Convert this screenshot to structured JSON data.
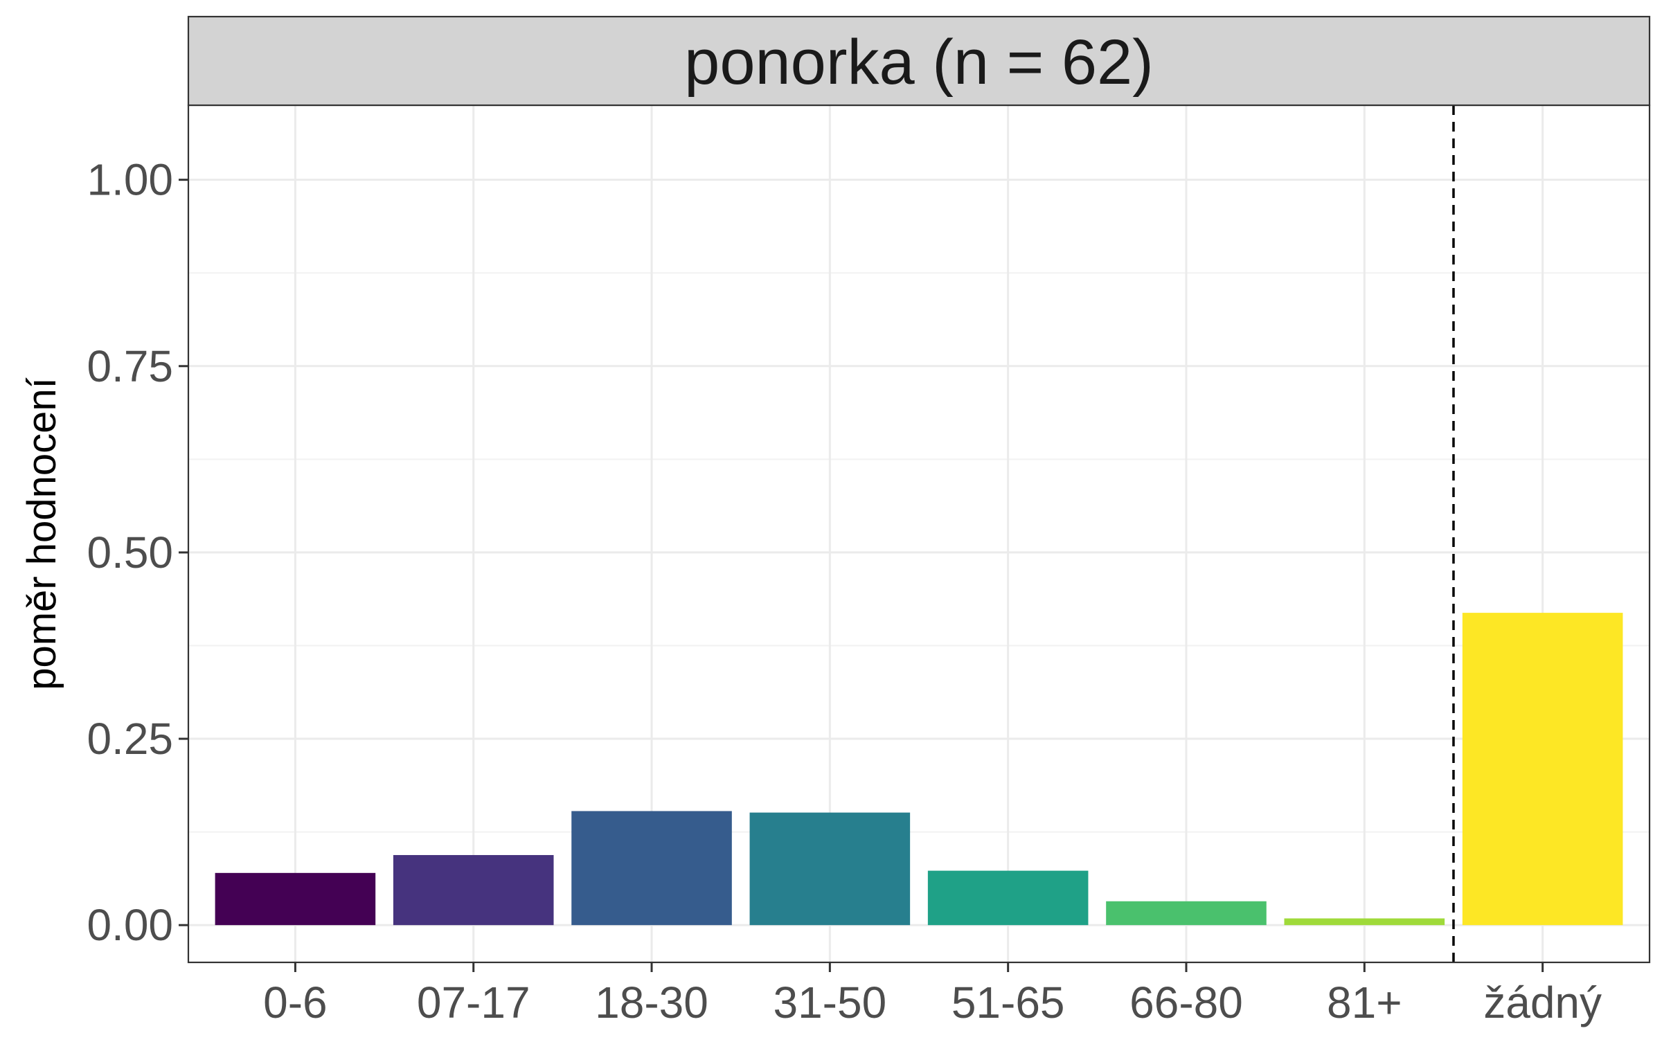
{
  "chart_data": {
    "type": "bar",
    "facet_title": "ponorka (n = 62)",
    "ylabel": "poměr hodnocení",
    "xlabel": "",
    "categories": [
      "0-6",
      "07-17",
      "18-30",
      "31-50",
      "51-65",
      "66-80",
      "81+",
      "žádný"
    ],
    "values": [
      0.07,
      0.094,
      0.153,
      0.151,
      0.073,
      0.032,
      0.009,
      0.419
    ],
    "colors": [
      "#440154",
      "#46337E",
      "#365C8D",
      "#277F8E",
      "#1FA187",
      "#4AC16D",
      "#9FDA3A",
      "#FDE725"
    ],
    "ylim": [
      -0.05,
      1.1
    ],
    "yticks": [
      0,
      0.25,
      0.5,
      0.75,
      1.0
    ],
    "ytick_labels": [
      "0.00",
      "0.25",
      "0.50",
      "0.75",
      "1.00"
    ],
    "divider_after_category_index": 6,
    "grid": true,
    "colors_theme": {
      "strip_fill": "#D3D3D3",
      "grid_major": "#EBEBEB",
      "grid_minor": "#F2F2F2",
      "panel_border": "#333333"
    }
  }
}
